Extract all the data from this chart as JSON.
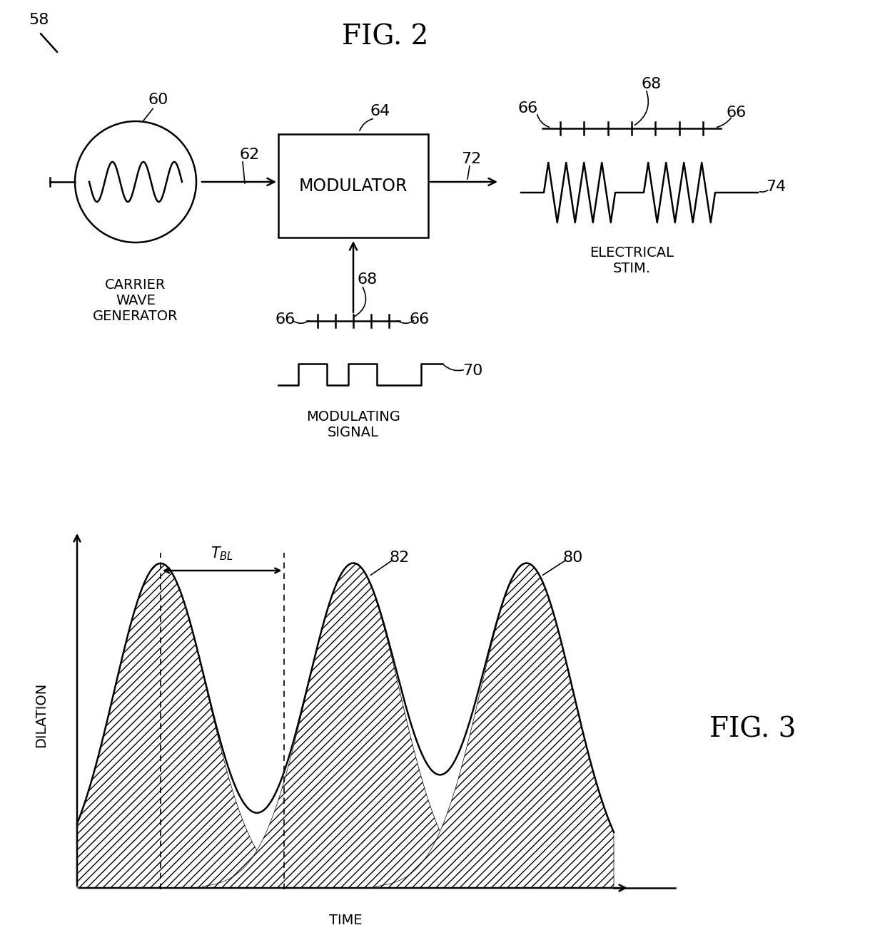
{
  "fig2_title": "FIG. 2",
  "fig3_title": "FIG. 3",
  "label_58": "58",
  "label_60": "60",
  "label_62": "62",
  "label_64": "64",
  "label_66a": "66",
  "label_66b": "66",
  "label_66c": "66",
  "label_66d": "66",
  "label_68a": "68",
  "label_68b": "68",
  "label_70": "70",
  "label_72": "72",
  "label_74": "74",
  "label_80": "80",
  "label_82": "82",
  "carrier_text": "CARRIER\nWAVE\nGENERATOR",
  "modulator_text": "MODULATOR",
  "elec_stim_text": "ELECTRICAL\nSTIM.",
  "modulating_signal_text": "MODULATING\nSIGNAL",
  "dilation_label": "DILATION",
  "time_label": "TIME",
  "bg_color": "#ffffff",
  "line_color": "#000000"
}
